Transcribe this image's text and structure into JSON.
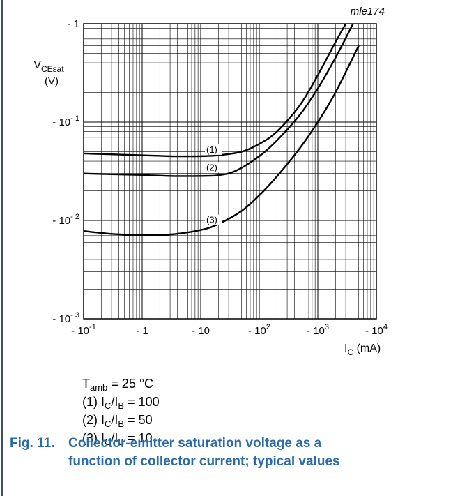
{
  "chart_data": {
    "type": "line",
    "code": "mle174",
    "x_scale": "log",
    "y_scale": "log",
    "xlim": [
      0.1,
      10000
    ],
    "ylim": [
      0.001,
      1
    ],
    "x_ticks": [
      {
        "value": 0.1,
        "base": "- 10",
        "exp": "-1"
      },
      {
        "value": 1,
        "base": "- 1",
        "exp": ""
      },
      {
        "value": 10,
        "base": "- 10",
        "exp": ""
      },
      {
        "value": 100,
        "base": "- 10",
        "exp": "2"
      },
      {
        "value": 1000,
        "base": "- 10",
        "exp": "3"
      },
      {
        "value": 10000,
        "base": "- 10",
        "exp": "4"
      }
    ],
    "y_ticks": [
      {
        "value": 1,
        "base": "- 1",
        "exp": ""
      },
      {
        "value": 0.1,
        "base": "- 10",
        "exp": "- 1"
      },
      {
        "value": 0.01,
        "base": "- 10",
        "exp": "- 2"
      },
      {
        "value": 0.001,
        "base": "- 10",
        "exp": "- 3"
      }
    ],
    "ylabel": {
      "main": "V",
      "sub": "CEsat",
      "unit": "(V)"
    },
    "xlabel": {
      "main": "I",
      "sub": "C",
      "unit": " (mA)"
    },
    "grid": true,
    "series": [
      {
        "name": "(1)",
        "x": [
          0.1,
          0.3,
          1,
          3,
          10,
          20,
          50,
          100,
          200,
          500,
          1000,
          2000,
          3000
        ],
        "y": [
          0.048,
          0.047,
          0.046,
          0.045,
          0.045,
          0.046,
          0.05,
          0.06,
          0.08,
          0.15,
          0.3,
          0.65,
          1.0
        ]
      },
      {
        "name": "(2)",
        "x": [
          0.1,
          0.3,
          1,
          3,
          10,
          20,
          40,
          100,
          200,
          500,
          1000,
          2000,
          4000
        ],
        "y": [
          0.03,
          0.0295,
          0.029,
          0.0283,
          0.0283,
          0.0288,
          0.032,
          0.045,
          0.065,
          0.12,
          0.22,
          0.45,
          1.0
        ]
      },
      {
        "name": "(3)",
        "x": [
          0.1,
          0.3,
          1,
          3,
          10,
          20,
          50,
          100,
          200,
          500,
          1000,
          2000,
          5000
        ],
        "y": [
          0.0078,
          0.0073,
          0.0071,
          0.0072,
          0.008,
          0.0092,
          0.0125,
          0.018,
          0.028,
          0.055,
          0.1,
          0.2,
          0.6
        ]
      }
    ]
  },
  "conditions": {
    "temp": {
      "main": "T",
      "sub": "amb",
      "rest": " = 25 °C"
    },
    "lines": [
      {
        "prefix": "(1) I",
        "sub1": "C",
        "mid": "/I",
        "sub2": "B",
        "rest": " = 100"
      },
      {
        "prefix": "(2) I",
        "sub1": "C",
        "mid": "/I",
        "sub2": "B",
        "rest": " = 50"
      },
      {
        "prefix": "(3) I",
        "sub1": "C",
        "mid": "/I",
        "sub2": "B",
        "rest": " = 10"
      }
    ]
  },
  "caption": {
    "number": "Fig. 11.",
    "line1": "Collector-emitter saturation voltage as a",
    "line2": "function of collector current; typical values"
  },
  "colors": {
    "caption": "#2a6aa6",
    "rule": "#3c4f66"
  }
}
